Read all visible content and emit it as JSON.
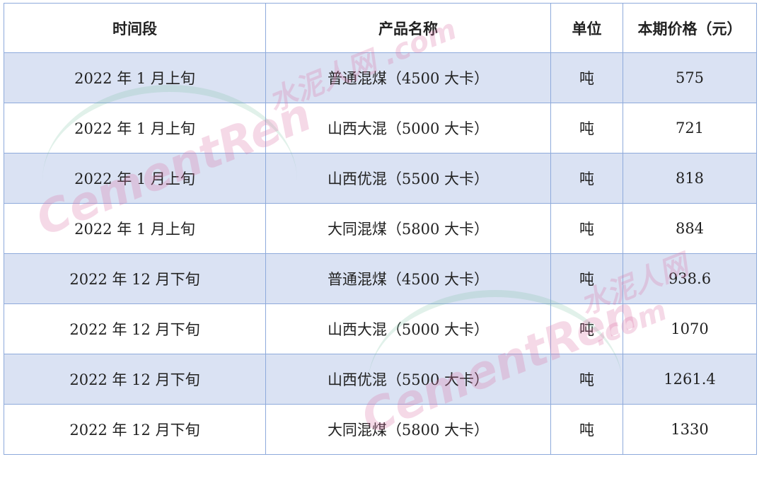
{
  "table": {
    "headers": [
      "时间段",
      "产品名称",
      "单位",
      "本期价格（元）"
    ],
    "rows": [
      [
        "2022 年 1 月上旬",
        "普通混煤（4500 大卡）",
        "吨",
        "575"
      ],
      [
        "2022 年 1 月上旬",
        "山西大混（5000 大卡）",
        "吨",
        "721"
      ],
      [
        "2022 年 1 月上旬",
        "山西优混（5500 大卡）",
        "吨",
        "818"
      ],
      [
        "2022 年 1 月上旬",
        "大同混煤（5800 大卡）",
        "吨",
        "884"
      ],
      [
        "2022 年 12 月下旬",
        "普通混煤（4500 大卡）",
        "吨",
        "938.6"
      ],
      [
        "2022 年 12 月下旬",
        "山西大混（5000 大卡）",
        "吨",
        "1070"
      ],
      [
        "2022 年 12 月下旬",
        "山西优混（5500 大卡）",
        "吨",
        "1261.4"
      ],
      [
        "2022 年 12 月下旬",
        "大同混煤（5800 大卡）",
        "吨",
        "1330"
      ]
    ]
  },
  "watermark": {
    "brand": "CementRen",
    "cn": "水泥人网",
    ".com": ".com"
  },
  "colors": {
    "border": "#8eaadb",
    "band": "#dae2f3"
  }
}
